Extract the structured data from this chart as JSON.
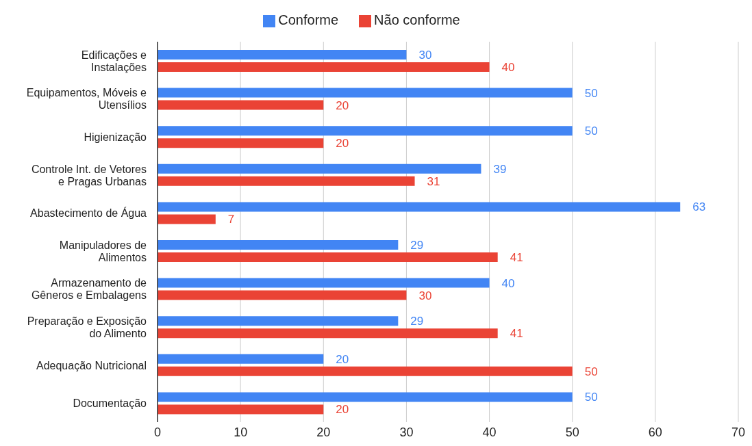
{
  "chart_data": {
    "type": "bar",
    "orientation": "horizontal",
    "categories": [
      "Edificações e\nInstalações",
      "Equipamentos, Móveis e\nUtensílios",
      "Higienização",
      "Controle Int. de Vetores\ne Pragas Urbanas",
      "Abastecimento de Água",
      "Manipuladores de\nAlimentos",
      "Armazenamento de\nGêneros e Embalagens",
      "Preparação e Exposição\ndo Alimento",
      "Adequação Nutricional",
      "Documentação"
    ],
    "series": [
      {
        "name": "Conforme",
        "color": "#4285f4",
        "values": [
          30,
          50,
          50,
          39,
          63,
          29,
          40,
          29,
          20,
          50
        ]
      },
      {
        "name": "Não conforme",
        "color": "#ea4335",
        "values": [
          40,
          20,
          20,
          31,
          7,
          41,
          30,
          41,
          50,
          20
        ]
      }
    ],
    "xlim": [
      0,
      70
    ],
    "xticks": [
      0,
      10,
      20,
      30,
      40,
      50,
      60,
      70
    ],
    "grid": "x",
    "legend": "top",
    "data_labels": true
  }
}
